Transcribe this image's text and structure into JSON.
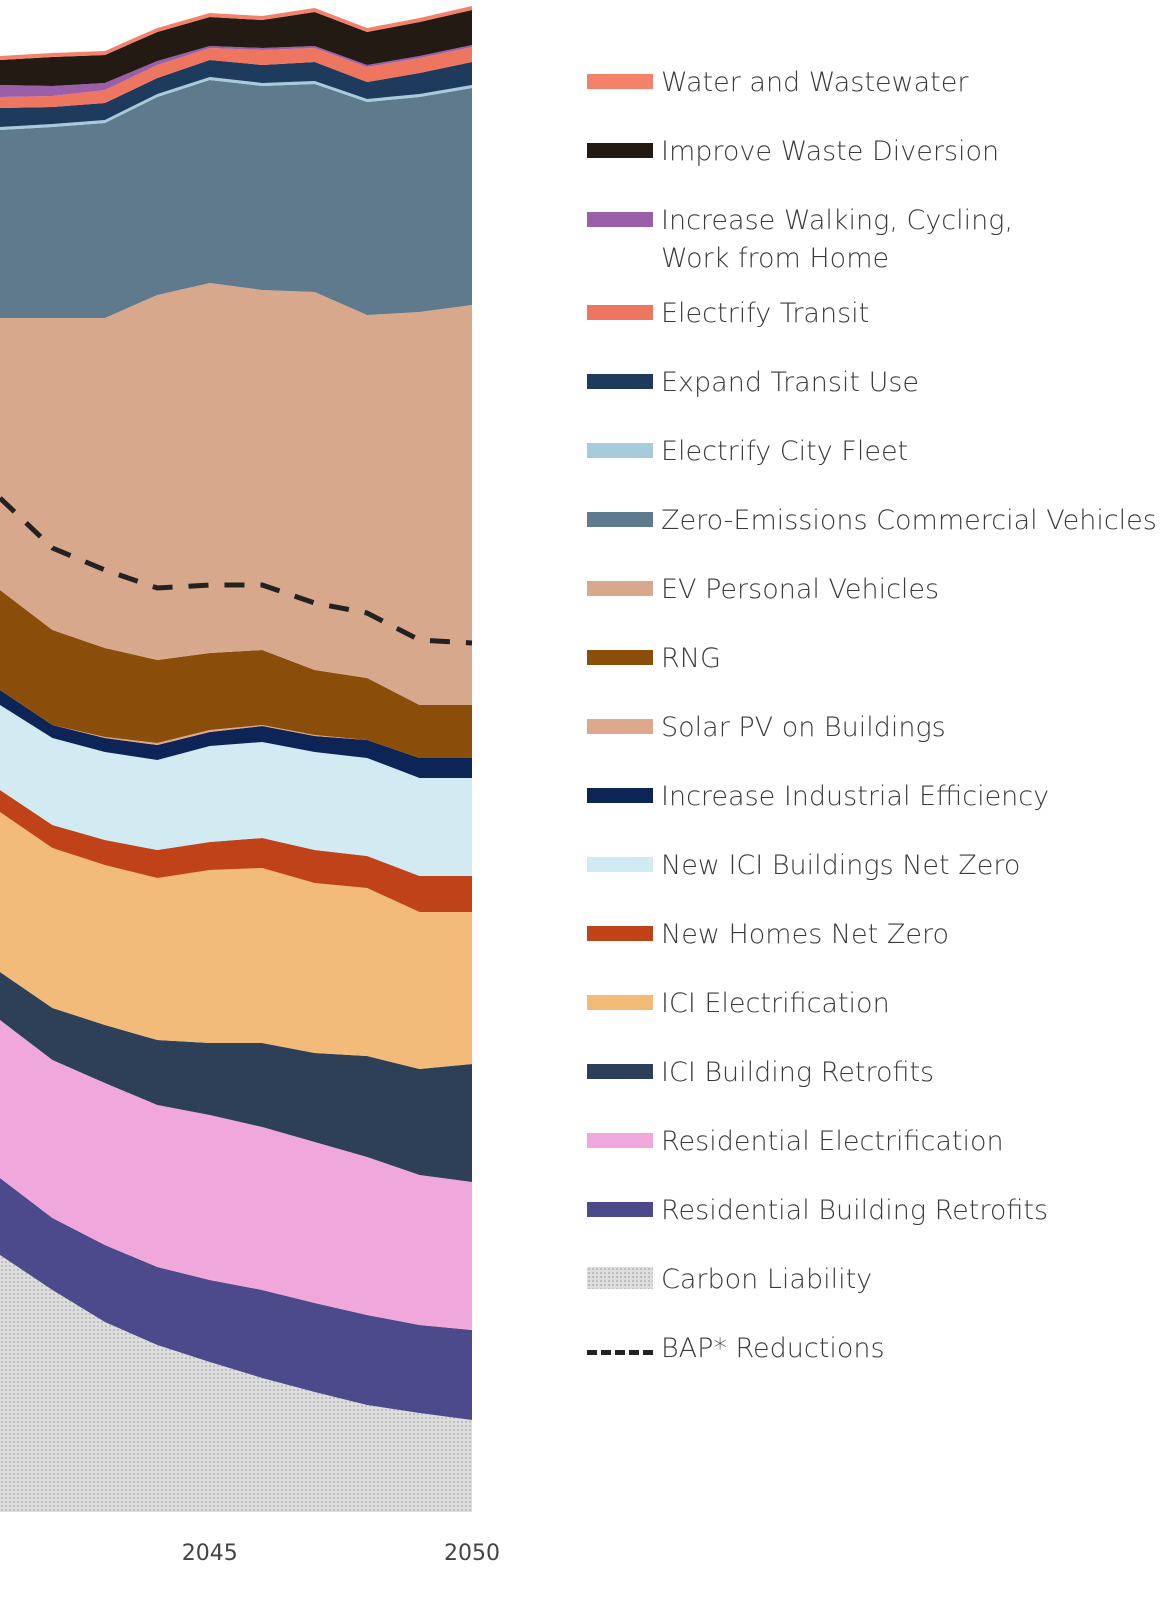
{
  "chart_data": {
    "type": "area",
    "stacked": true,
    "x": [
      2041,
      2042,
      2043,
      2044,
      2045,
      2046,
      2047,
      2048,
      2049,
      2050
    ],
    "xlim": [
      2041,
      2050
    ],
    "xticks": [
      2045,
      2050
    ],
    "ylim": [
      0,
      1512
    ],
    "series": [
      {
        "name": "Carbon Liability",
        "color": "#cfcfcf",
        "values": [
          257,
          222,
          190,
          167,
          150,
          134,
          120,
          107,
          99,
          92
        ]
      },
      {
        "name": "Residential Building Retrofits",
        "color": "#4d4a8c",
        "values": [
          77,
          72,
          77,
          78,
          82,
          88,
          89,
          90,
          88,
          90
        ]
      },
      {
        "name": "Residential Electrification",
        "color": "#f0a8dc",
        "values": [
          158,
          158,
          162,
          162,
          165,
          163,
          161,
          158,
          150,
          148
        ]
      },
      {
        "name": "ICI Building Retrofits",
        "color": "#2e4058",
        "values": [
          48,
          52,
          58,
          65,
          72,
          84,
          89,
          101,
          106,
          118
        ]
      },
      {
        "name": "ICI Electrification",
        "color": "#f2bb7a",
        "values": [
          160,
          160,
          160,
          162,
          173,
          175,
          170,
          168,
          157,
          152
        ]
      },
      {
        "name": "New Homes Net Zero",
        "color": "#c04218",
        "values": [
          22,
          23,
          25,
          28,
          28,
          30,
          33,
          32,
          36,
          36
        ]
      },
      {
        "name": "New ICI Buildings Net Zero",
        "color": "#d2eaf1",
        "values": [
          85,
          87,
          88,
          90,
          96,
          96,
          98,
          98,
          98,
          98
        ]
      },
      {
        "name": "Increase Industrial Efficiency",
        "color": "#0d2456",
        "values": [
          15,
          13,
          14,
          15,
          14,
          16,
          16,
          18,
          20,
          20
        ]
      },
      {
        "name": "Solar PV on Buildings",
        "color": "#dea88c",
        "values": [
          0,
          0,
          1,
          2,
          2,
          1,
          1,
          0,
          0,
          0
        ]
      },
      {
        "name": "RNG",
        "color": "#8b4e0a",
        "values": [
          100,
          95,
          89,
          83,
          77,
          75,
          65,
          62,
          53,
          53
        ]
      },
      {
        "name": "EV Personal Vehicles",
        "color": "#d8a88c",
        "values": [
          272,
          312,
          330,
          365,
          370,
          360,
          378,
          363,
          393,
          400
        ]
      },
      {
        "name": "Zero-Emissions Commercial Vehicles",
        "color": "#5e7a8c",
        "values": [
          188,
          191,
          195,
          198,
          203,
          204,
          208,
          213,
          215,
          217
        ]
      },
      {
        "name": "Electrify City Fleet",
        "color": "#a8cbdc",
        "values": [
          3,
          3,
          3,
          3,
          3,
          3,
          3,
          3,
          3,
          3
        ]
      },
      {
        "name": "Expand Transit Use",
        "color": "#1e3a5c",
        "values": [
          19,
          17,
          17,
          16,
          17,
          18,
          19,
          17,
          21,
          23
        ]
      },
      {
        "name": "Electrify Transit",
        "color": "#ee7560",
        "values": [
          11,
          11,
          13,
          13,
          12,
          15,
          14,
          15,
          15,
          15
        ]
      },
      {
        "name": "Increase Walking, Cycling, Work from Home",
        "color": "#9b5ea8",
        "values": [
          12,
          10,
          7,
          4,
          2,
          2,
          2,
          2,
          2,
          2
        ]
      },
      {
        "name": "Improve Waste Diversion",
        "color": "#231a14",
        "values": [
          25,
          29,
          28,
          29,
          29,
          28,
          34,
          33,
          34,
          35
        ]
      },
      {
        "name": "Water and Wastewater",
        "color": "#f4826a",
        "values": [
          4,
          4,
          4,
          4,
          4,
          4,
          4,
          4,
          4,
          4
        ]
      },
      {
        "name": "BAP* Reductions",
        "type": "line",
        "color": "#222222",
        "values": [
          1014,
          964,
          942,
          924,
          927,
          927,
          909,
          899,
          872,
          869
        ]
      }
    ]
  }
}
